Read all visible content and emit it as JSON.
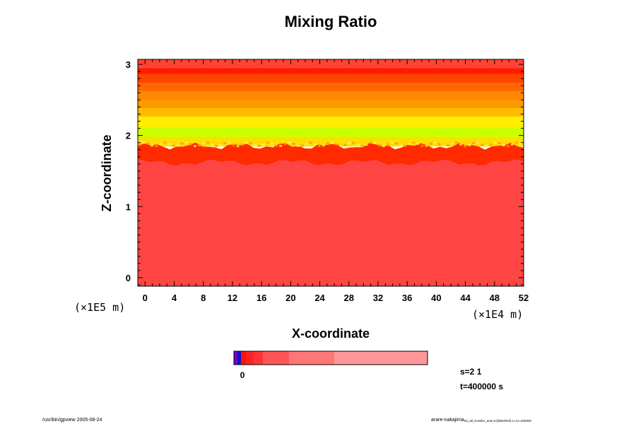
{
  "chart_data": {
    "type": "heatmap",
    "title": "Mixing Ratio",
    "xlabel": "X-coordinate",
    "ylabel": "Z-coordinate",
    "x_ticks": [
      "0",
      "4",
      "8",
      "12",
      "16",
      "20",
      "24",
      "28",
      "32",
      "36",
      "40",
      "44",
      "48",
      "52"
    ],
    "y_ticks": [
      "0",
      "1",
      "2",
      "3"
    ],
    "x_range": [
      -1,
      52
    ],
    "y_range": [
      -0.12,
      3.07
    ],
    "x_scale_label": "(×1E4 m)",
    "y_scale_label": "(×1E5 m)",
    "field": {
      "description_free": true,
      "lower_region": {
        "z_top": 1.72,
        "color": "#ff4444"
      },
      "interface_band": {
        "z_bottom": 1.62,
        "z_top": 1.85,
        "color": "#ff2a00"
      },
      "upper_bands": [
        {
          "z0": 1.85,
          "z1": 1.98,
          "color": "#ffdd00"
        },
        {
          "z0": 1.98,
          "z1": 2.12,
          "color": "#ccff00"
        },
        {
          "z0": 2.12,
          "z1": 2.27,
          "color": "#ffee00"
        },
        {
          "z0": 2.27,
          "z1": 2.39,
          "color": "#ffbb00"
        },
        {
          "z0": 2.39,
          "z1": 2.51,
          "color": "#ff9900"
        },
        {
          "z0": 2.51,
          "z1": 2.63,
          "color": "#ff8800"
        },
        {
          "z0": 2.63,
          "z1": 2.75,
          "color": "#ff6600"
        },
        {
          "z0": 2.75,
          "z1": 2.87,
          "color": "#ff4400"
        },
        {
          "z0": 2.87,
          "z1": 2.95,
          "color": "#ff1a00"
        },
        {
          "z0": 2.95,
          "z1": 3.07,
          "color": "#ff4433"
        }
      ]
    },
    "colorbar": {
      "label": "0",
      "segments": [
        {
          "w": 5,
          "color": "#7700cc"
        },
        {
          "w": 5,
          "color": "#1111cc"
        },
        {
          "w": 7,
          "color": "#ff1100"
        },
        {
          "w": 10,
          "color": "#ff2222"
        },
        {
          "w": 14,
          "color": "#ff3333"
        },
        {
          "w": 37,
          "color": "#ff5555"
        },
        {
          "w": 64,
          "color": "#ff7777"
        },
        {
          "w": 132,
          "color": "#ff9999"
        }
      ]
    }
  },
  "info": {
    "s_label": "s=2 1",
    "t_label": "t=400000 s",
    "footer_left": "/usr/bin/gpview 2005-08-24",
    "footer_right_main": "arare-nakajima",
    "footer_right_sub": "03_all_Kessler_and.nc@MixRtAll,z=2,t=400000"
  }
}
